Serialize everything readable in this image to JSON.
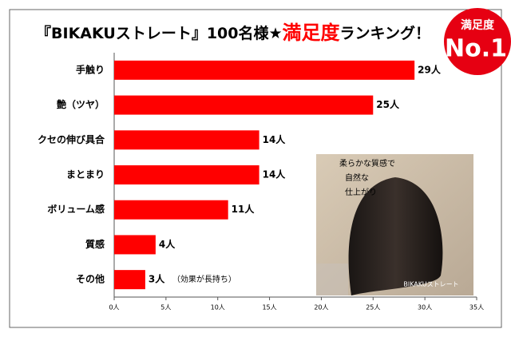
{
  "chart_data": {
    "type": "hbar",
    "title": [
      "『BIKAKUストレート』100名様★",
      "満足度",
      "ランキング！"
    ],
    "badge": [
      "満足度",
      "No.1"
    ],
    "categories": [
      "手触り",
      "艶（ツヤ）",
      "クセの伸び具合",
      "まとまり",
      "ボリューム感",
      "質感",
      "その他"
    ],
    "values": [
      29,
      25,
      14,
      14,
      11,
      4,
      3
    ],
    "value_labels": [
      "29人",
      "25人",
      "14人",
      "14人",
      "11人",
      "4人",
      "3人"
    ],
    "annotation": "（効果が長持ち）",
    "color": "#ff0000",
    "xlim": [
      0,
      35
    ],
    "xticks": [
      {
        "value": 0,
        "label": "0人"
      },
      {
        "value": 5,
        "label": "5人"
      },
      {
        "value": 10,
        "label": "10人"
      },
      {
        "value": 15,
        "label": "15人"
      },
      {
        "value": 20,
        "label": "20人"
      },
      {
        "value": 25,
        "label": "25人"
      },
      {
        "value": 30,
        "label": "30人"
      },
      {
        "value": 35,
        "label": "35人"
      }
    ],
    "photo_caption": [
      "柔らかな質感で",
      "自然な",
      "仕上がり"
    ],
    "photo_brand": "BIKAKUストレート"
  }
}
